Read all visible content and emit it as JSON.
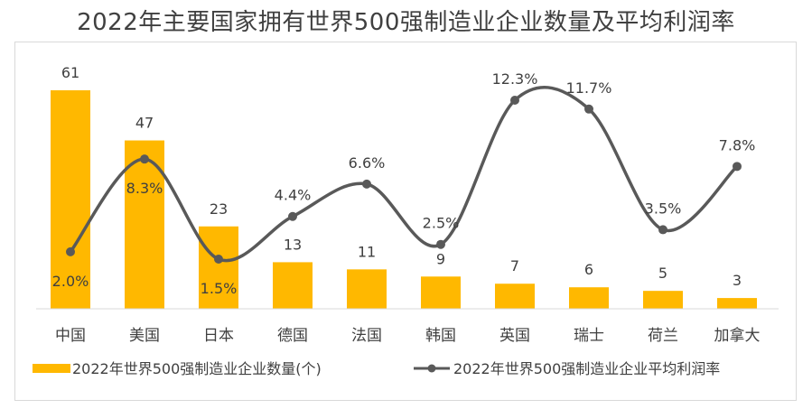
{
  "chart_data": {
    "type": "bar",
    "title": "2022年主要国家拥有世界500强制造业企业数量及平均利润率",
    "categories": [
      "中国",
      "美国",
      "日本",
      "德国",
      "法国",
      "韩国",
      "英国",
      "瑞士",
      "荷兰",
      "加拿大"
    ],
    "series": [
      {
        "name": "2022年世界500强制造业企业数量(个)",
        "type": "bar",
        "values": [
          61,
          47,
          23,
          13,
          11,
          9,
          7,
          6,
          5,
          3
        ],
        "labels": [
          "61",
          "47",
          "23",
          "13",
          "11",
          "9",
          "7",
          "6",
          "5",
          "3"
        ],
        "color": "#FFB800"
      },
      {
        "name": "2022年世界500强制造业企业平均利润率",
        "type": "line",
        "smooth": true,
        "values": [
          2.0,
          8.3,
          1.5,
          4.4,
          6.6,
          2.5,
          12.3,
          11.7,
          3.5,
          7.8
        ],
        "labels": [
          "2.0%",
          "8.3%",
          "1.5%",
          "4.4%",
          "6.6%",
          "2.5%",
          "12.3%",
          "11.7%",
          "3.5%",
          "7.8%"
        ],
        "color": "#595959"
      }
    ],
    "y_bar_range": [
      0,
      61
    ],
    "y_line_range": [
      0,
      12.3
    ],
    "grid": false,
    "legend_position": "bottom"
  }
}
